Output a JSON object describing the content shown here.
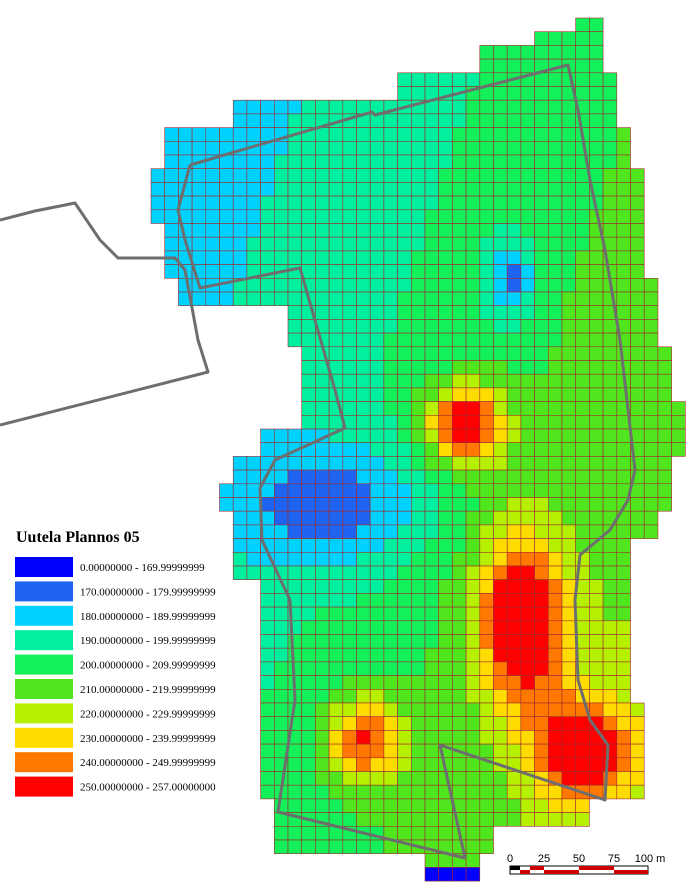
{
  "legend": {
    "title": "Uutela Plannos 05",
    "items": [
      {
        "label": "0.00000000 - 169.99999999",
        "color": "#0000ff"
      },
      {
        "label": "170.00000000 - 179.99999999",
        "color": "#1e64f0"
      },
      {
        "label": "180.00000000 - 189.99999999",
        "color": "#00d2ff"
      },
      {
        "label": "190.00000000 - 199.99999999",
        "color": "#00f0a0"
      },
      {
        "label": "200.00000000 - 209.99999999",
        "color": "#14f05a"
      },
      {
        "label": "210.00000000 - 219.99999999",
        "color": "#50e61e"
      },
      {
        "label": "220.00000000 - 229.99999999",
        "color": "#b4f000"
      },
      {
        "label": "230.00000000 - 239.99999999",
        "color": "#ffdc00"
      },
      {
        "label": "240.00000000 - 249.99999999",
        "color": "#ff7800"
      },
      {
        "label": "250.00000000 - 257.00000000",
        "color": "#ff0000"
      }
    ]
  },
  "scale_bar": {
    "labels": [
      "0",
      "25",
      "50",
      "75",
      "100 m"
    ]
  }
}
